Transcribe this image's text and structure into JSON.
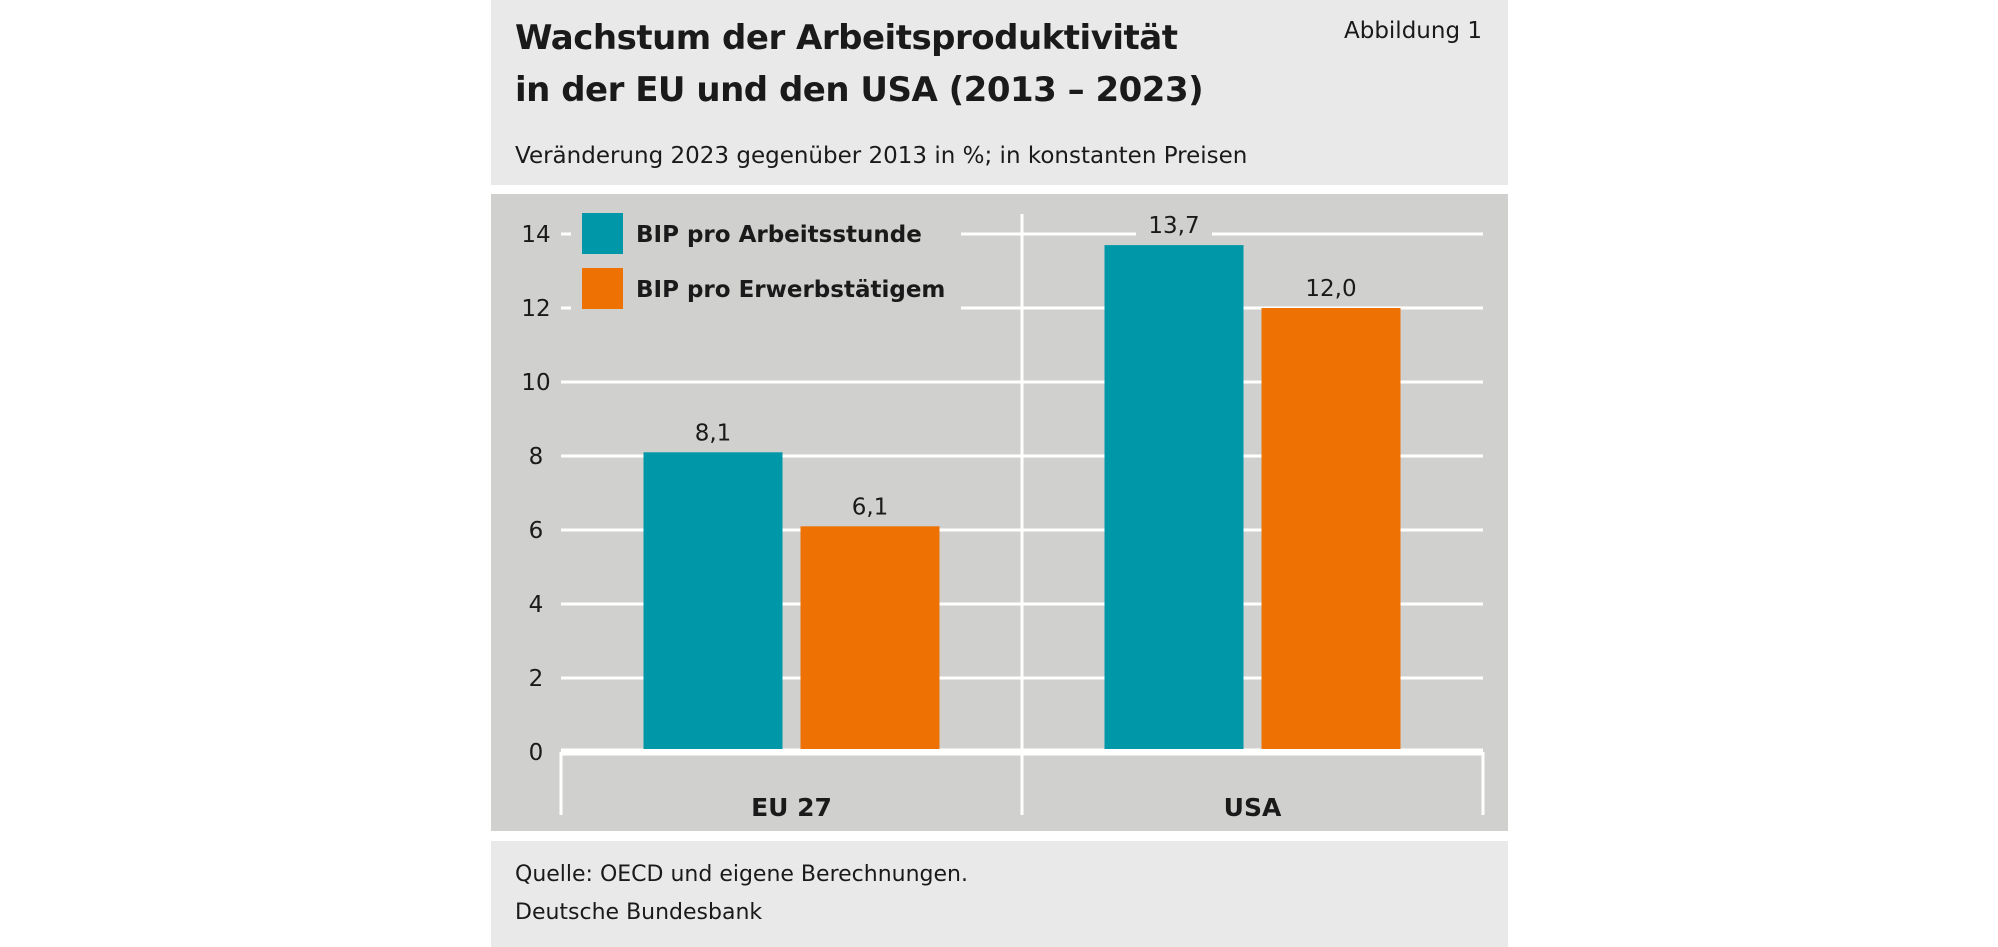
{
  "header": {
    "title_line1": "Wachstum der Arbeitsproduktivität",
    "title_line2": "in der EU und den USA (2013 – 2023)",
    "figure_label": "Abbildung 1",
    "subtitle": "Veränderung 2023 gegenüber 2013 in %; in konstanten Preisen"
  },
  "footer": {
    "source": "Quelle: OECD und eigene Berechnungen.",
    "publisher": "Deutsche Bundesbank"
  },
  "chart_data": {
    "type": "bar",
    "categories": [
      "EU 27",
      "USA"
    ],
    "series": [
      {
        "name": "BIP pro Arbeitsstunde",
        "values": [
          8.1,
          13.7
        ],
        "labels": [
          "8,1",
          "13,7"
        ],
        "color": "#0098a8"
      },
      {
        "name": "BIP pro Erwerbstätigem",
        "values": [
          6.1,
          12.0
        ],
        "labels": [
          "6,1",
          "12,0"
        ],
        "color": "#ee7203"
      }
    ],
    "ylim": [
      0,
      14
    ],
    "yticks": [
      0,
      2,
      4,
      6,
      8,
      10,
      12,
      14
    ],
    "grid": true,
    "legend": "top-left",
    "colors": {
      "panel": "#e9e9e9",
      "plot": "#d0d0cf",
      "grid": "#ffffff"
    }
  }
}
